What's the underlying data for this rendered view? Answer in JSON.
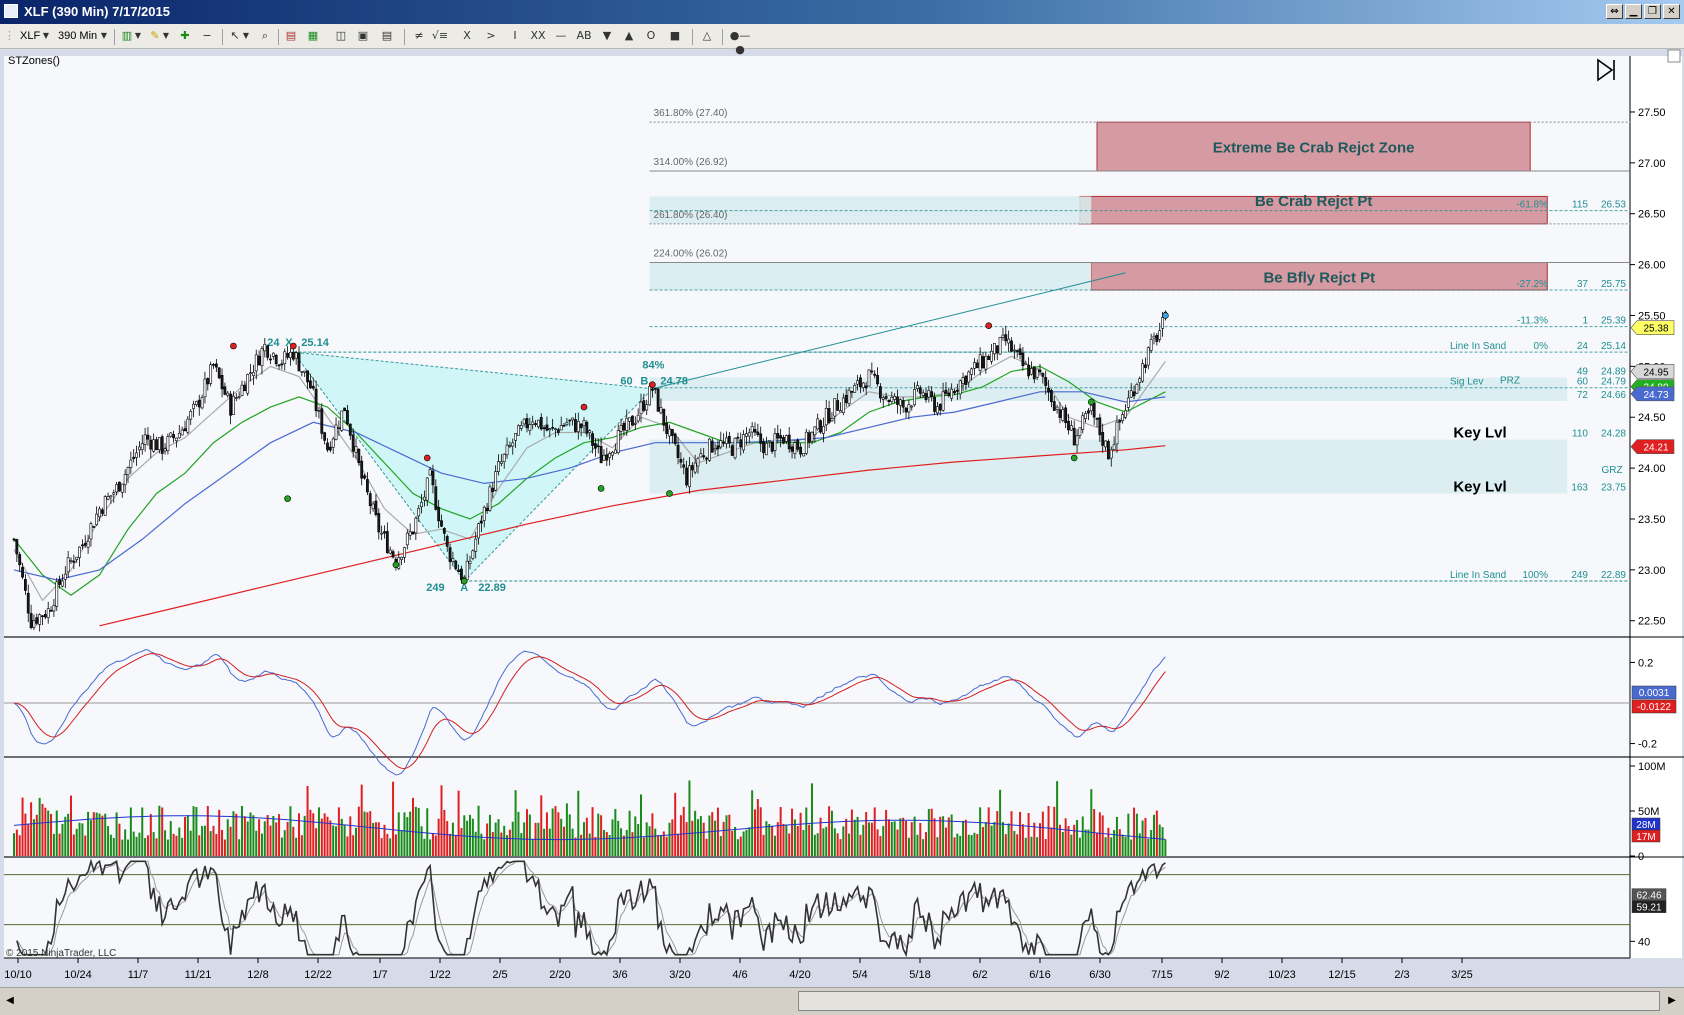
{
  "window": {
    "title": "XLF (390 Min)  7/17/2015",
    "controls": [
      "⇔",
      "▁",
      "❐",
      "✕"
    ]
  },
  "toolbar": {
    "instrument": "XLF",
    "interval": "390 Min",
    "drawing_tools": [
      "≠",
      "√≡",
      "X",
      ">",
      "I",
      "XX",
      "—",
      "AB",
      "▼",
      "▲",
      "O",
      "■",
      "△",
      "●—●"
    ]
  },
  "panel": {
    "indicator_label": "STZones()",
    "copyright": "© 2015 NinjaTrader, LLC"
  },
  "chart_data": {
    "type": "candlestick",
    "instrument": "XLF",
    "interval": "390 Min",
    "x_ticks": [
      "10/10",
      "10/24",
      "11/7",
      "11/21",
      "12/8",
      "12/22",
      "1/7",
      "1/22",
      "2/5",
      "2/20",
      "3/6",
      "3/20",
      "4/6",
      "4/20",
      "5/4",
      "5/18",
      "6/2",
      "6/16",
      "6/30",
      "7/15",
      "9/2",
      "10/23",
      "12/15",
      "2/3",
      "3/25"
    ],
    "y_ticks": [
      "27.50",
      "27.00",
      "26.50",
      "26.00",
      "25.50",
      "25.00",
      "24.50",
      "24.00",
      "23.50",
      "23.00",
      "22.50"
    ],
    "ylim": [
      22.35,
      28.05
    ],
    "price_path": [
      [
        0,
        23.3
      ],
      [
        6,
        22.5
      ],
      [
        12,
        22.6
      ],
      [
        18,
        23.0
      ],
      [
        24,
        23.25
      ],
      [
        30,
        23.6
      ],
      [
        36,
        23.8
      ],
      [
        40,
        24.0
      ],
      [
        46,
        24.3
      ],
      [
        52,
        24.2
      ],
      [
        58,
        24.35
      ],
      [
        64,
        24.6
      ],
      [
        70,
        25.0
      ],
      [
        76,
        24.6
      ],
      [
        82,
        24.9
      ],
      [
        88,
        25.2
      ],
      [
        94,
        25.05
      ],
      [
        98,
        25.14
      ],
      [
        104,
        24.8
      ],
      [
        110,
        24.2
      ],
      [
        116,
        24.6
      ],
      [
        122,
        23.9
      ],
      [
        128,
        23.4
      ],
      [
        134,
        23.1
      ],
      [
        140,
        23.4
      ],
      [
        146,
        23.9
      ],
      [
        152,
        23.2
      ],
      [
        158,
        22.9
      ],
      [
        164,
        23.5
      ],
      [
        170,
        24.0
      ],
      [
        176,
        24.3
      ],
      [
        182,
        24.5
      ],
      [
        188,
        24.35
      ],
      [
        194,
        24.45
      ],
      [
        200,
        24.4
      ],
      [
        206,
        24.1
      ],
      [
        212,
        24.3
      ],
      [
        218,
        24.5
      ],
      [
        224,
        24.78
      ],
      [
        230,
        24.3
      ],
      [
        236,
        23.9
      ],
      [
        240,
        24.1
      ],
      [
        246,
        24.25
      ],
      [
        252,
        24.2
      ],
      [
        258,
        24.35
      ],
      [
        264,
        24.2
      ],
      [
        270,
        24.3
      ],
      [
        276,
        24.2
      ],
      [
        282,
        24.4
      ],
      [
        288,
        24.6
      ],
      [
        294,
        24.75
      ],
      [
        300,
        24.9
      ],
      [
        306,
        24.7
      ],
      [
        312,
        24.6
      ],
      [
        318,
        24.75
      ],
      [
        324,
        24.6
      ],
      [
        330,
        24.8
      ],
      [
        336,
        24.95
      ],
      [
        342,
        25.1
      ],
      [
        348,
        25.25
      ],
      [
        354,
        25.0
      ],
      [
        360,
        24.9
      ],
      [
        366,
        24.6
      ],
      [
        372,
        24.3
      ],
      [
        378,
        24.55
      ],
      [
        384,
        24.15
      ],
      [
        390,
        24.6
      ],
      [
        396,
        25.0
      ],
      [
        400,
        25.25
      ],
      [
        404,
        25.45
      ]
    ],
    "moving_averages": [
      {
        "color": "#aaaaaa",
        "path": [
          [
            0,
            23.2
          ],
          [
            10,
            22.7
          ],
          [
            20,
            23.0
          ],
          [
            30,
            23.5
          ],
          [
            40,
            23.9
          ],
          [
            50,
            24.15
          ],
          [
            60,
            24.3
          ],
          [
            70,
            24.55
          ],
          [
            80,
            24.8
          ],
          [
            90,
            25.0
          ],
          [
            100,
            24.9
          ],
          [
            110,
            24.5
          ],
          [
            120,
            24.1
          ],
          [
            130,
            23.6
          ],
          [
            140,
            23.35
          ],
          [
            150,
            23.4
          ],
          [
            160,
            23.3
          ],
          [
            170,
            23.8
          ],
          [
            180,
            24.2
          ],
          [
            190,
            24.35
          ],
          [
            200,
            24.35
          ],
          [
            210,
            24.2
          ],
          [
            220,
            24.5
          ],
          [
            230,
            24.4
          ],
          [
            240,
            24.05
          ],
          [
            250,
            24.15
          ],
          [
            260,
            24.25
          ],
          [
            270,
            24.25
          ],
          [
            280,
            24.3
          ],
          [
            290,
            24.55
          ],
          [
            300,
            24.75
          ],
          [
            310,
            24.7
          ],
          [
            320,
            24.7
          ],
          [
            330,
            24.75
          ],
          [
            340,
            24.95
          ],
          [
            350,
            25.1
          ],
          [
            360,
            24.95
          ],
          [
            370,
            24.5
          ],
          [
            380,
            24.4
          ],
          [
            390,
            24.5
          ],
          [
            404,
            25.05
          ]
        ]
      },
      {
        "color": "#22a422",
        "path": [
          [
            0,
            23.3
          ],
          [
            10,
            22.95
          ],
          [
            20,
            22.75
          ],
          [
            30,
            22.95
          ],
          [
            40,
            23.4
          ],
          [
            50,
            23.75
          ],
          [
            60,
            23.95
          ],
          [
            70,
            24.25
          ],
          [
            80,
            24.45
          ],
          [
            90,
            24.6
          ],
          [
            100,
            24.7
          ],
          [
            110,
            24.6
          ],
          [
            120,
            24.35
          ],
          [
            130,
            24.05
          ],
          [
            140,
            23.75
          ],
          [
            150,
            23.6
          ],
          [
            160,
            23.5
          ],
          [
            170,
            23.65
          ],
          [
            180,
            23.9
          ],
          [
            190,
            24.1
          ],
          [
            200,
            24.25
          ],
          [
            210,
            24.3
          ],
          [
            220,
            24.4
          ],
          [
            230,
            24.45
          ],
          [
            240,
            24.35
          ],
          [
            250,
            24.25
          ],
          [
            260,
            24.25
          ],
          [
            270,
            24.25
          ],
          [
            280,
            24.25
          ],
          [
            290,
            24.35
          ],
          [
            300,
            24.55
          ],
          [
            310,
            24.65
          ],
          [
            320,
            24.7
          ],
          [
            330,
            24.72
          ],
          [
            340,
            24.8
          ],
          [
            350,
            24.95
          ],
          [
            360,
            25.0
          ],
          [
            370,
            24.85
          ],
          [
            380,
            24.65
          ],
          [
            390,
            24.55
          ],
          [
            404,
            24.75
          ]
        ]
      },
      {
        "color": "#4a6ad0",
        "path": [
          [
            0,
            23.0
          ],
          [
            15,
            22.9
          ],
          [
            30,
            23.0
          ],
          [
            45,
            23.3
          ],
          [
            60,
            23.65
          ],
          [
            75,
            23.95
          ],
          [
            90,
            24.25
          ],
          [
            105,
            24.45
          ],
          [
            120,
            24.35
          ],
          [
            135,
            24.15
          ],
          [
            150,
            23.95
          ],
          [
            165,
            23.85
          ],
          [
            180,
            23.9
          ],
          [
            195,
            24.0
          ],
          [
            210,
            24.15
          ],
          [
            225,
            24.25
          ],
          [
            240,
            24.25
          ],
          [
            255,
            24.25
          ],
          [
            270,
            24.27
          ],
          [
            285,
            24.3
          ],
          [
            300,
            24.4
          ],
          [
            315,
            24.5
          ],
          [
            330,
            24.55
          ],
          [
            345,
            24.65
          ],
          [
            360,
            24.75
          ],
          [
            375,
            24.75
          ],
          [
            390,
            24.65
          ],
          [
            404,
            24.7
          ]
        ]
      },
      {
        "color": "#e02020",
        "path": [
          [
            30,
            22.45
          ],
          [
            60,
            22.65
          ],
          [
            90,
            22.85
          ],
          [
            120,
            23.05
          ],
          [
            150,
            23.25
          ],
          [
            180,
            23.45
          ],
          [
            210,
            23.63
          ],
          [
            240,
            23.78
          ],
          [
            270,
            23.88
          ],
          [
            300,
            23.98
          ],
          [
            330,
            24.06
          ],
          [
            360,
            24.12
          ],
          [
            390,
            24.18
          ],
          [
            404,
            24.22
          ]
        ]
      }
    ],
    "pattern": {
      "points": [
        {
          "name": "X",
          "x": 98,
          "y": 25.14,
          "label": "25.14",
          "count": "24"
        },
        {
          "name": "A",
          "x": 158,
          "y": 22.89,
          "label": "22.89",
          "count": "249"
        },
        {
          "name": "B",
          "x": 224,
          "y": 24.78,
          "label": "24.78",
          "count": "60",
          "ratio": "84%"
        }
      ],
      "projection_end": {
        "x": 390,
        "y": 25.92
      }
    },
    "fib_levels": [
      {
        "label": "361.80% (27.40)",
        "value": 27.4
      },
      {
        "label": "314.00% (26.92)",
        "value": 26.92
      },
      {
        "label": "261.80% (26.40)",
        "value": 26.4
      },
      {
        "label": "224.00% (26.02)",
        "value": 26.02
      }
    ],
    "zones": [
      {
        "label": "Extreme Be Crab Rejct Zone",
        "from": 26.92,
        "to": 27.4,
        "x0": 380,
        "x1": 532
      },
      {
        "label": "Be Crab Rejct Pt",
        "from": 26.4,
        "to": 26.67,
        "x0": 374,
        "x1": 538
      },
      {
        "label": "Be Bfly Rejct Pt",
        "from": 25.75,
        "to": 26.02,
        "x0": 378,
        "x1": 538
      }
    ],
    "right_levels": [
      {
        "value": 26.53,
        "pct": "-61.8%",
        "count": "115",
        "price": "26.53",
        "text": ""
      },
      {
        "value": 25.75,
        "pct": "-27.2%",
        "count": "37",
        "price": "25.75",
        "text": ""
      },
      {
        "value": 25.39,
        "pct": "-11.3%",
        "count": "1",
        "price": "25.39",
        "text": ""
      },
      {
        "value": 25.14,
        "pct": "0%",
        "count": "24",
        "price": "25.14",
        "text": "Line In Sand"
      },
      {
        "value": 24.89,
        "pct": "",
        "count": "49",
        "price": "24.89",
        "text": ""
      },
      {
        "value": 24.79,
        "pct": "",
        "count": "60",
        "price": "24.79",
        "text": "Sig Lev"
      },
      {
        "value": 24.66,
        "pct": "",
        "count": "72",
        "price": "24.66",
        "text": ""
      },
      {
        "value": 24.28,
        "pct": "",
        "count": "110",
        "price": "24.28",
        "text": ""
      },
      {
        "value": 23.75,
        "pct": "",
        "count": "163",
        "price": "23.75",
        "text": ""
      },
      {
        "value": 22.89,
        "pct": "100%",
        "count": "249",
        "price": "22.89",
        "text": "Line In Sand"
      }
    ],
    "key_levels": [
      {
        "label": "Key Lvl",
        "value": 24.35
      },
      {
        "label": "Key Lvl",
        "value": 23.82
      }
    ],
    "grz_label": "GRZ",
    "prz_label": "PRZ",
    "price_badges": [
      {
        "value": 25.38,
        "text": "25.38",
        "bg": "#ffff66",
        "fg": "#000000"
      },
      {
        "value": 24.95,
        "text": "24.95",
        "bg": "#d8d8d8",
        "fg": "#000000"
      },
      {
        "value": 24.8,
        "text": "24.80",
        "bg": "#22b022",
        "fg": "#ffffff"
      },
      {
        "value": 24.73,
        "text": "24.73",
        "bg": "#4a6ad0",
        "fg": "#ffffff"
      },
      {
        "value": 24.21,
        "text": "24.21",
        "bg": "#e02020",
        "fg": "#ffffff"
      }
    ],
    "macd": {
      "y_ticks": [
        "0.2",
        "-0.2"
      ],
      "badges": [
        {
          "text": "0.0031",
          "bg": "#4a6ad0"
        },
        {
          "text": "-0.0122",
          "bg": "#e02020"
        }
      ]
    },
    "volume": {
      "y_ticks": [
        "100M",
        "50M",
        "0"
      ],
      "badges": [
        {
          "text": "28M",
          "bg": "#2233cc"
        },
        {
          "text": "17M",
          "bg": "#e02020"
        }
      ]
    },
    "oscillator": {
      "y_ticks": [
        "40"
      ],
      "badges": [
        {
          "text": "62.46",
          "bg": "#555555"
        },
        {
          "text": "59.21",
          "bg": "#222222"
        }
      ]
    },
    "colors": {
      "up_candle": "#ffffff",
      "down_candle": "#1a1a1a",
      "pattern_fill": "#cdf6f8",
      "zone_red": "#d99aa2",
      "zone_blue": "#d8ecf0",
      "teal_text": "#1f8f91",
      "background": "#f6f8fc"
    }
  }
}
